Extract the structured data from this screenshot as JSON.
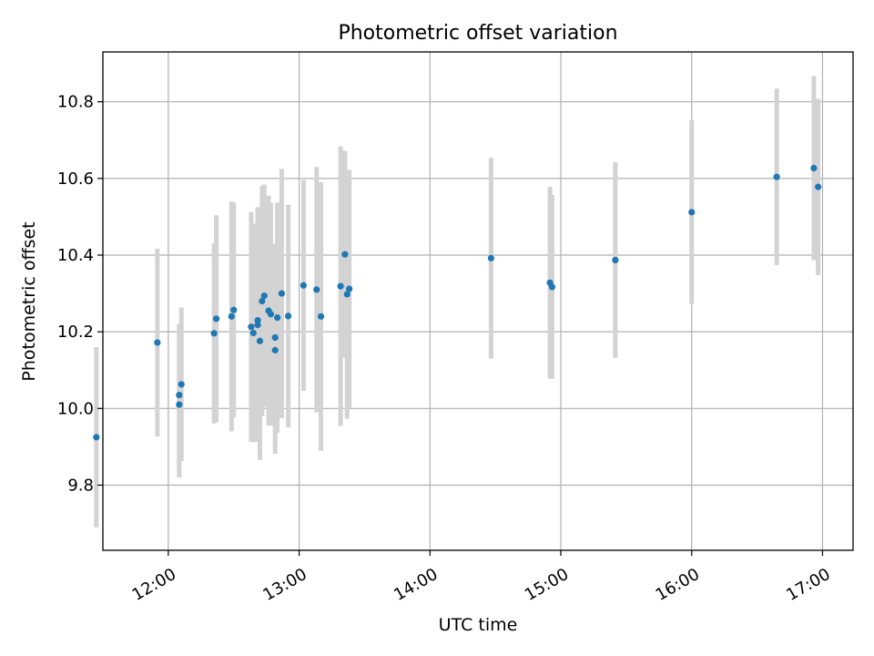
{
  "chart_data": {
    "type": "scatter",
    "title": "Photometric offset variation",
    "xlabel": "UTC time",
    "ylabel": "Photometric offset",
    "xlim": [
      "11:30",
      "17:14"
    ],
    "ylim": [
      9.63,
      10.93
    ],
    "grid": true,
    "x_ticks": [
      "12:00",
      "13:00",
      "14:00",
      "15:00",
      "16:00",
      "17:00"
    ],
    "y_ticks": [
      9.8,
      10.0,
      10.2,
      10.4,
      10.6,
      10.8
    ],
    "y_tick_labels": [
      "9.8",
      "10.0",
      "10.2",
      "10.4",
      "10.6",
      "10.8"
    ],
    "colors": {
      "point": "#1f77b4",
      "errorbar": "#d3d3d3",
      "grid": "#b0b0b0"
    },
    "points": [
      {
        "x": "11:27",
        "y": 9.925,
        "err": 0.235
      },
      {
        "x": "11:55",
        "y": 10.172,
        "err": 0.245
      },
      {
        "x": "12:05",
        "y": 10.035,
        "err": 0.185
      },
      {
        "x": "12:05",
        "y": 10.01,
        "err": 0.19
      },
      {
        "x": "12:06",
        "y": 10.063,
        "err": 0.2
      },
      {
        "x": "12:21",
        "y": 10.196,
        "err": 0.235
      },
      {
        "x": "12:22",
        "y": 10.234,
        "err": 0.27
      },
      {
        "x": "12:29",
        "y": 10.24,
        "err": 0.3
      },
      {
        "x": "12:30",
        "y": 10.257,
        "err": 0.28
      },
      {
        "x": "12:38",
        "y": 10.213,
        "err": 0.3
      },
      {
        "x": "12:39",
        "y": 10.197,
        "err": 0.285
      },
      {
        "x": "12:41",
        "y": 10.218,
        "err": 0.305
      },
      {
        "x": "12:41",
        "y": 10.23,
        "err": 0.295
      },
      {
        "x": "12:42",
        "y": 10.176,
        "err": 0.31
      },
      {
        "x": "12:43",
        "y": 10.28,
        "err": 0.3
      },
      {
        "x": "12:44",
        "y": 10.294,
        "err": 0.29
      },
      {
        "x": "12:46",
        "y": 10.255,
        "err": 0.3
      },
      {
        "x": "12:47",
        "y": 10.246,
        "err": 0.29
      },
      {
        "x": "12:49",
        "y": 10.185,
        "err": 0.245
      },
      {
        "x": "12:49",
        "y": 10.152,
        "err": 0.27
      },
      {
        "x": "12:50",
        "y": 10.237,
        "err": 0.3
      },
      {
        "x": "12:52",
        "y": 10.3,
        "err": 0.325
      },
      {
        "x": "12:55",
        "y": 10.241,
        "err": 0.29
      },
      {
        "x": "13:02",
        "y": 10.321,
        "err": 0.275
      },
      {
        "x": "13:08",
        "y": 10.31,
        "err": 0.32
      },
      {
        "x": "13:10",
        "y": 10.24,
        "err": 0.35
      },
      {
        "x": "13:19",
        "y": 10.319,
        "err": 0.365
      },
      {
        "x": "13:21",
        "y": 10.402,
        "err": 0.27
      },
      {
        "x": "13:22",
        "y": 10.298,
        "err": 0.325
      },
      {
        "x": "13:23",
        "y": 10.312,
        "err": 0.31
      },
      {
        "x": "14:28",
        "y": 10.392,
        "err": 0.262
      },
      {
        "x": "14:55",
        "y": 10.328,
        "err": 0.25
      },
      {
        "x": "14:56",
        "y": 10.317,
        "err": 0.24
      },
      {
        "x": "15:25",
        "y": 10.387,
        "err": 0.255
      },
      {
        "x": "16:00",
        "y": 10.512,
        "err": 0.24
      },
      {
        "x": "16:39",
        "y": 10.604,
        "err": 0.23
      },
      {
        "x": "16:56",
        "y": 10.627,
        "err": 0.24
      },
      {
        "x": "16:58",
        "y": 10.578,
        "err": 0.23
      }
    ]
  }
}
